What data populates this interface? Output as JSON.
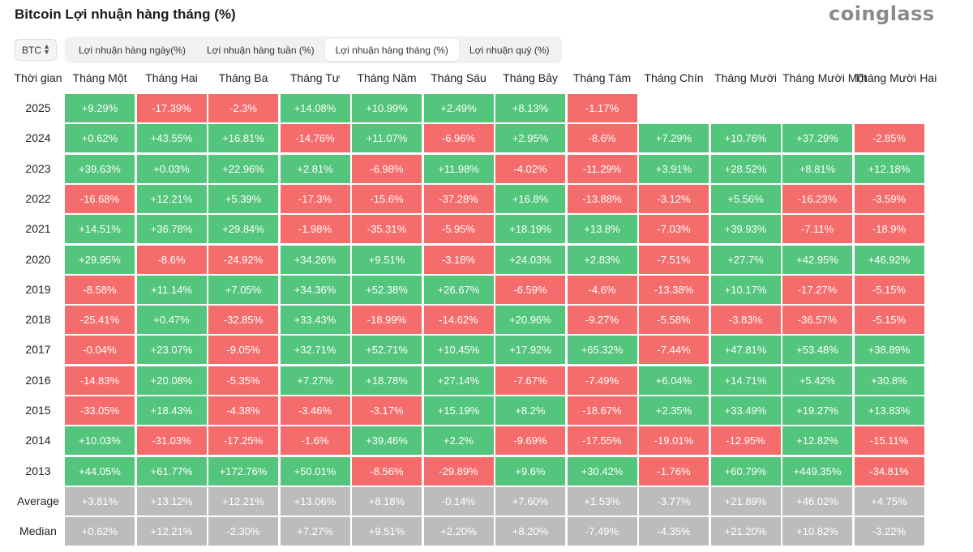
{
  "page": {
    "title": "Bitcoin Lợi nhuận hàng tháng (%)",
    "logo_text": "coinglass",
    "symbol": "BTC"
  },
  "tabs": [
    {
      "label": "Lợi nhuận hàng ngày(%)",
      "active": false
    },
    {
      "label": "Lợi nhuận hàng tuần (%)",
      "active": false
    },
    {
      "label": "Lợi nhuận hàng tháng (%)",
      "active": true
    },
    {
      "label": "Lợi nhuận quý (%)",
      "active": false
    }
  ],
  "colors": {
    "positive": "#53c57c",
    "negative": "#f56c6c",
    "stat": "#bcbcbc"
  },
  "table": {
    "corner": "Thời gian",
    "months": [
      "Tháng Một",
      "Tháng Hai",
      "Tháng Ba",
      "Tháng Tư",
      "Tháng Năm",
      "Tháng Sáu",
      "Tháng Bảy",
      "Tháng Tám",
      "Tháng Chín",
      "Tháng Mười",
      "Tháng Mười Một",
      "Tháng Mười Hai"
    ],
    "rows": [
      {
        "label": "2025",
        "values": [
          "+9.29%",
          "-17.39%",
          "-2.3%",
          "+14.08%",
          "+10.99%",
          "+2.49%",
          "+8.13%",
          "-1.17%",
          "",
          "",
          "",
          ""
        ]
      },
      {
        "label": "2024",
        "values": [
          "+0.62%",
          "+43.55%",
          "+16.81%",
          "-14.76%",
          "+11.07%",
          "-6.96%",
          "+2.95%",
          "-8.6%",
          "+7.29%",
          "+10.76%",
          "+37.29%",
          "-2.85%"
        ]
      },
      {
        "label": "2023",
        "values": [
          "+39.63%",
          "+0.03%",
          "+22.96%",
          "+2.81%",
          "-6.98%",
          "+11.98%",
          "-4.02%",
          "-11.29%",
          "+3.91%",
          "+28.52%",
          "+8.81%",
          "+12.18%"
        ]
      },
      {
        "label": "2022",
        "values": [
          "-16.68%",
          "+12.21%",
          "+5.39%",
          "-17.3%",
          "-15.6%",
          "-37.28%",
          "+16.8%",
          "-13.88%",
          "-3.12%",
          "+5.56%",
          "-16.23%",
          "-3.59%"
        ]
      },
      {
        "label": "2021",
        "values": [
          "+14.51%",
          "+36.78%",
          "+29.84%",
          "-1.98%",
          "-35.31%",
          "-5.95%",
          "+18.19%",
          "+13.8%",
          "-7.03%",
          "+39.93%",
          "-7.11%",
          "-18.9%"
        ]
      },
      {
        "label": "2020",
        "values": [
          "+29.95%",
          "-8.6%",
          "-24.92%",
          "+34.26%",
          "+9.51%",
          "-3.18%",
          "+24.03%",
          "+2.83%",
          "-7.51%",
          "+27.7%",
          "+42.95%",
          "+46.92%"
        ]
      },
      {
        "label": "2019",
        "values": [
          "-8.58%",
          "+11.14%",
          "+7.05%",
          "+34.36%",
          "+52.38%",
          "+26.67%",
          "-6.59%",
          "-4.6%",
          "-13.38%",
          "+10.17%",
          "-17.27%",
          "-5.15%"
        ]
      },
      {
        "label": "2018",
        "values": [
          "-25.41%",
          "+0.47%",
          "-32.85%",
          "+33.43%",
          "-18.99%",
          "-14.62%",
          "+20.96%",
          "-9.27%",
          "-5.58%",
          "-3.83%",
          "-36.57%",
          "-5.15%"
        ]
      },
      {
        "label": "2017",
        "values": [
          "-0.04%",
          "+23.07%",
          "-9.05%",
          "+32.71%",
          "+52.71%",
          "+10.45%",
          "+17.92%",
          "+65.32%",
          "-7.44%",
          "+47.81%",
          "+53.48%",
          "+38.89%"
        ]
      },
      {
        "label": "2016",
        "values": [
          "-14.83%",
          "+20.08%",
          "-5.35%",
          "+7.27%",
          "+18.78%",
          "+27.14%",
          "-7.67%",
          "-7.49%",
          "+6.04%",
          "+14.71%",
          "+5.42%",
          "+30.8%"
        ]
      },
      {
        "label": "2015",
        "values": [
          "-33.05%",
          "+18.43%",
          "-4.38%",
          "-3.46%",
          "-3.17%",
          "+15.19%",
          "+8.2%",
          "-18.67%",
          "+2.35%",
          "+33.49%",
          "+19.27%",
          "+13.83%"
        ]
      },
      {
        "label": "2014",
        "values": [
          "+10.03%",
          "-31.03%",
          "-17.25%",
          "-1.6%",
          "+39.46%",
          "+2.2%",
          "-9.69%",
          "-17.55%",
          "-19.01%",
          "-12.95%",
          "+12.82%",
          "-15.11%"
        ]
      },
      {
        "label": "2013",
        "values": [
          "+44.05%",
          "+61.77%",
          "+172.76%",
          "+50.01%",
          "-8.56%",
          "-29.89%",
          "+9.6%",
          "+30.42%",
          "-1.76%",
          "+60.79%",
          "+449.35%",
          "-34.81%"
        ]
      }
    ],
    "stats": [
      {
        "label": "Average",
        "values": [
          "+3.81%",
          "+13.12%",
          "+12.21%",
          "+13.06%",
          "+8.18%",
          "-0.14%",
          "+7.60%",
          "+1.53%",
          "-3.77%",
          "+21.89%",
          "+46.02%",
          "+4.75%"
        ]
      },
      {
        "label": "Median",
        "values": [
          "+0.62%",
          "+12.21%",
          "-2.30%",
          "+7.27%",
          "+9.51%",
          "+2.20%",
          "+8.20%",
          "-7.49%",
          "-4.35%",
          "+21.20%",
          "+10.82%",
          "-3.22%"
        ]
      }
    ]
  }
}
